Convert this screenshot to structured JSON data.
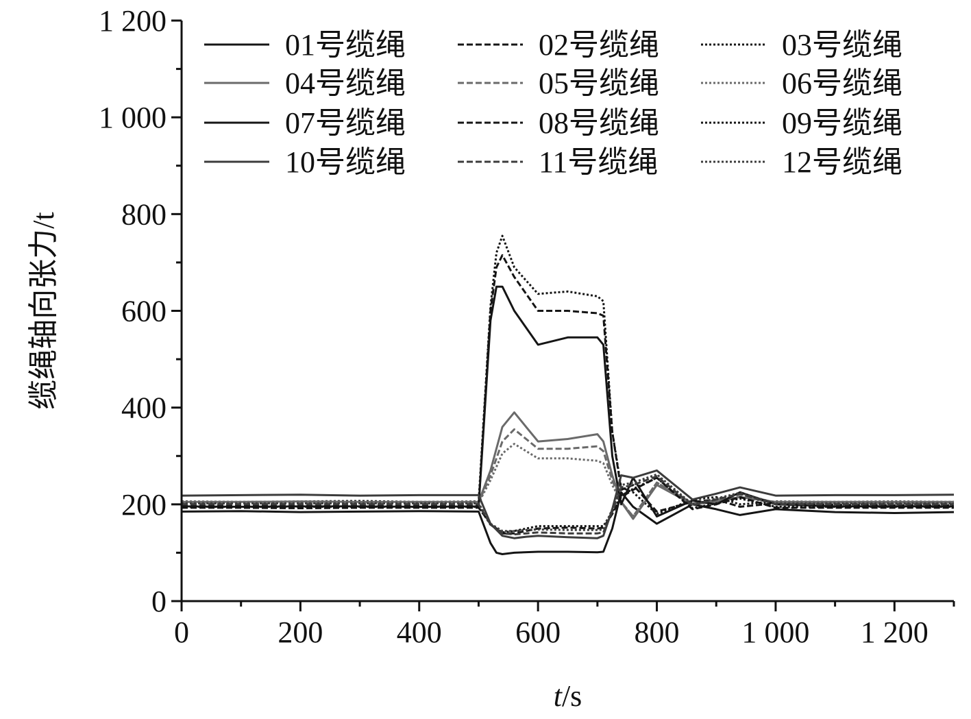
{
  "chart_data": {
    "type": "line",
    "xlabel_italic": "t",
    "xlabel_unit": "/s",
    "ylabel": "缆绳轴向张力/t",
    "xlim": [
      0,
      1300
    ],
    "ylim": [
      0,
      1200
    ],
    "x_ticks": [
      0,
      200,
      400,
      600,
      800,
      1000,
      1200
    ],
    "x_tick_labels": [
      "0",
      "200",
      "400",
      "600",
      "800",
      "1 000",
      "1 200"
    ],
    "y_ticks": [
      0,
      200,
      400,
      600,
      800,
      1000,
      1200
    ],
    "y_tick_labels": [
      "0",
      "200",
      "400",
      "600",
      "800",
      "1 000",
      "1 200"
    ],
    "grid": false,
    "legend_position": "top",
    "series": [
      {
        "name": "01号缆绳",
        "style": "solid",
        "color": "#151515",
        "x": [
          0,
          100,
          200,
          300,
          400,
          500,
          520,
          530,
          540,
          560,
          600,
          650,
          700,
          710,
          725,
          740,
          760,
          800,
          860,
          900,
          940,
          1000,
          1100,
          1200,
          1300
        ],
        "y": [
          185,
          186,
          184,
          185,
          186,
          185,
          120,
          100,
          97,
          100,
          102,
          102,
          101,
          102,
          150,
          225,
          195,
          160,
          200,
          190,
          178,
          190,
          184,
          182,
          184
        ]
      },
      {
        "name": "02号缆绳",
        "style": "dashed",
        "color": "#151515",
        "x": [
          0,
          100,
          200,
          300,
          400,
          500,
          520,
          530,
          540,
          560,
          600,
          650,
          700,
          710,
          725,
          740,
          760,
          800,
          860,
          900,
          940,
          1000,
          1100,
          1200,
          1300
        ],
        "y": [
          198,
          197,
          199,
          198,
          197,
          198,
          600,
          690,
          715,
          670,
          600,
          600,
          595,
          590,
          350,
          230,
          240,
          185,
          205,
          210,
          195,
          202,
          199,
          198,
          198
        ]
      },
      {
        "name": "03号缆绳",
        "style": "dotted",
        "color": "#151515",
        "x": [
          0,
          100,
          200,
          300,
          400,
          500,
          520,
          530,
          540,
          560,
          600,
          650,
          700,
          710,
          725,
          740,
          760,
          800,
          860,
          900,
          940,
          1000,
          1100,
          1200,
          1300
        ],
        "y": [
          206,
          205,
          206,
          207,
          205,
          206,
          610,
          720,
          755,
          690,
          635,
          640,
          630,
          620,
          350,
          235,
          225,
          180,
          210,
          215,
          200,
          206,
          205,
          206,
          205
        ]
      },
      {
        "name": "04号缆绳",
        "style": "solid",
        "color": "#6a6a6a",
        "x": [
          0,
          100,
          200,
          300,
          400,
          500,
          520,
          540,
          560,
          580,
          600,
          650,
          700,
          710,
          725,
          740,
          760,
          800,
          860,
          900,
          940,
          1000,
          1100,
          1200,
          1300
        ],
        "y": [
          205,
          205,
          206,
          205,
          205,
          205,
          270,
          360,
          390,
          360,
          330,
          335,
          345,
          330,
          260,
          205,
          170,
          240,
          200,
          205,
          215,
          205,
          205,
          205,
          205
        ]
      },
      {
        "name": "05号缆绳",
        "style": "dashed",
        "color": "#6a6a6a",
        "x": [
          0,
          100,
          200,
          300,
          400,
          500,
          520,
          540,
          560,
          580,
          600,
          650,
          700,
          710,
          725,
          740,
          760,
          800,
          860,
          900,
          940,
          1000,
          1100,
          1200,
          1300
        ],
        "y": [
          204,
          204,
          203,
          204,
          204,
          204,
          260,
          330,
          355,
          335,
          315,
          315,
          320,
          310,
          250,
          205,
          175,
          245,
          202,
          208,
          220,
          204,
          204,
          204,
          204
        ]
      },
      {
        "name": "06号缆绳",
        "style": "dotted",
        "color": "#6a6a6a",
        "x": [
          0,
          100,
          200,
          300,
          400,
          500,
          520,
          540,
          560,
          580,
          600,
          650,
          700,
          710,
          725,
          740,
          760,
          800,
          860,
          900,
          940,
          1000,
          1100,
          1200,
          1300
        ],
        "y": [
          203,
          203,
          203,
          203,
          203,
          203,
          250,
          305,
          325,
          310,
          295,
          295,
          290,
          285,
          240,
          205,
          175,
          245,
          202,
          207,
          215,
          203,
          203,
          203,
          203
        ]
      },
      {
        "name": "07号缆绳",
        "style": "solid",
        "color": "#151515",
        "x": [
          0,
          100,
          200,
          300,
          400,
          500,
          520,
          530,
          540,
          560,
          600,
          650,
          700,
          710,
          725,
          740,
          760,
          800,
          860,
          900,
          940,
          1000,
          1100,
          1200,
          1300
        ],
        "y": [
          196,
          195,
          196,
          196,
          195,
          196,
          580,
          650,
          650,
          600,
          530,
          545,
          545,
          530,
          300,
          200,
          255,
          175,
          208,
          200,
          225,
          200,
          196,
          196,
          196
        ]
      },
      {
        "name": "08号缆绳",
        "style": "dashed",
        "color": "#151515",
        "x": [
          0,
          100,
          200,
          300,
          400,
          500,
          520,
          540,
          560,
          580,
          600,
          650,
          700,
          710,
          725,
          740,
          760,
          800,
          860,
          900,
          940,
          1000,
          1100,
          1200,
          1300
        ],
        "y": [
          193,
          193,
          192,
          193,
          193,
          193,
          160,
          140,
          140,
          145,
          150,
          152,
          150,
          152,
          180,
          215,
          230,
          255,
          190,
          200,
          215,
          193,
          193,
          193,
          193
        ]
      },
      {
        "name": "09号缆绳",
        "style": "dotted",
        "color": "#151515",
        "x": [
          0,
          100,
          200,
          300,
          400,
          500,
          520,
          540,
          560,
          580,
          600,
          650,
          700,
          710,
          725,
          740,
          760,
          800,
          860,
          900,
          940,
          1000,
          1100,
          1200,
          1300
        ],
        "y": [
          195,
          195,
          195,
          195,
          195,
          195,
          158,
          142,
          145,
          150,
          155,
          155,
          155,
          155,
          185,
          218,
          232,
          255,
          192,
          202,
          212,
          195,
          195,
          195,
          195
        ]
      },
      {
        "name": "10号缆绳",
        "style": "solid",
        "color": "#3c3c3c",
        "x": [
          0,
          100,
          200,
          300,
          400,
          500,
          520,
          540,
          560,
          580,
          600,
          650,
          700,
          710,
          725,
          740,
          760,
          800,
          860,
          900,
          940,
          1000,
          1100,
          1200,
          1300
        ],
        "y": [
          218,
          219,
          220,
          218,
          219,
          219,
          160,
          135,
          130,
          133,
          135,
          132,
          130,
          135,
          190,
          260,
          255,
          270,
          210,
          222,
          235,
          218,
          219,
          219,
          220
        ]
      },
      {
        "name": "11号缆绳",
        "style": "dashed",
        "color": "#3c3c3c",
        "x": [
          0,
          100,
          200,
          300,
          400,
          500,
          520,
          540,
          560,
          580,
          600,
          650,
          700,
          710,
          725,
          740,
          760,
          800,
          860,
          900,
          940,
          1000,
          1100,
          1200,
          1300
        ],
        "y": [
          200,
          200,
          200,
          200,
          200,
          200,
          158,
          140,
          138,
          140,
          142,
          140,
          140,
          142,
          185,
          235,
          240,
          258,
          198,
          210,
          222,
          200,
          200,
          200,
          200
        ]
      },
      {
        "name": "12号缆绳",
        "style": "dotted",
        "color": "#3c3c3c",
        "x": [
          0,
          100,
          200,
          300,
          400,
          500,
          520,
          540,
          560,
          580,
          600,
          650,
          700,
          710,
          725,
          740,
          760,
          800,
          860,
          900,
          940,
          1000,
          1100,
          1200,
          1300
        ],
        "y": [
          202,
          202,
          202,
          202,
          202,
          202,
          160,
          145,
          145,
          147,
          148,
          147,
          147,
          148,
          190,
          240,
          245,
          262,
          200,
          212,
          224,
          202,
          202,
          202,
          202
        ]
      }
    ]
  }
}
